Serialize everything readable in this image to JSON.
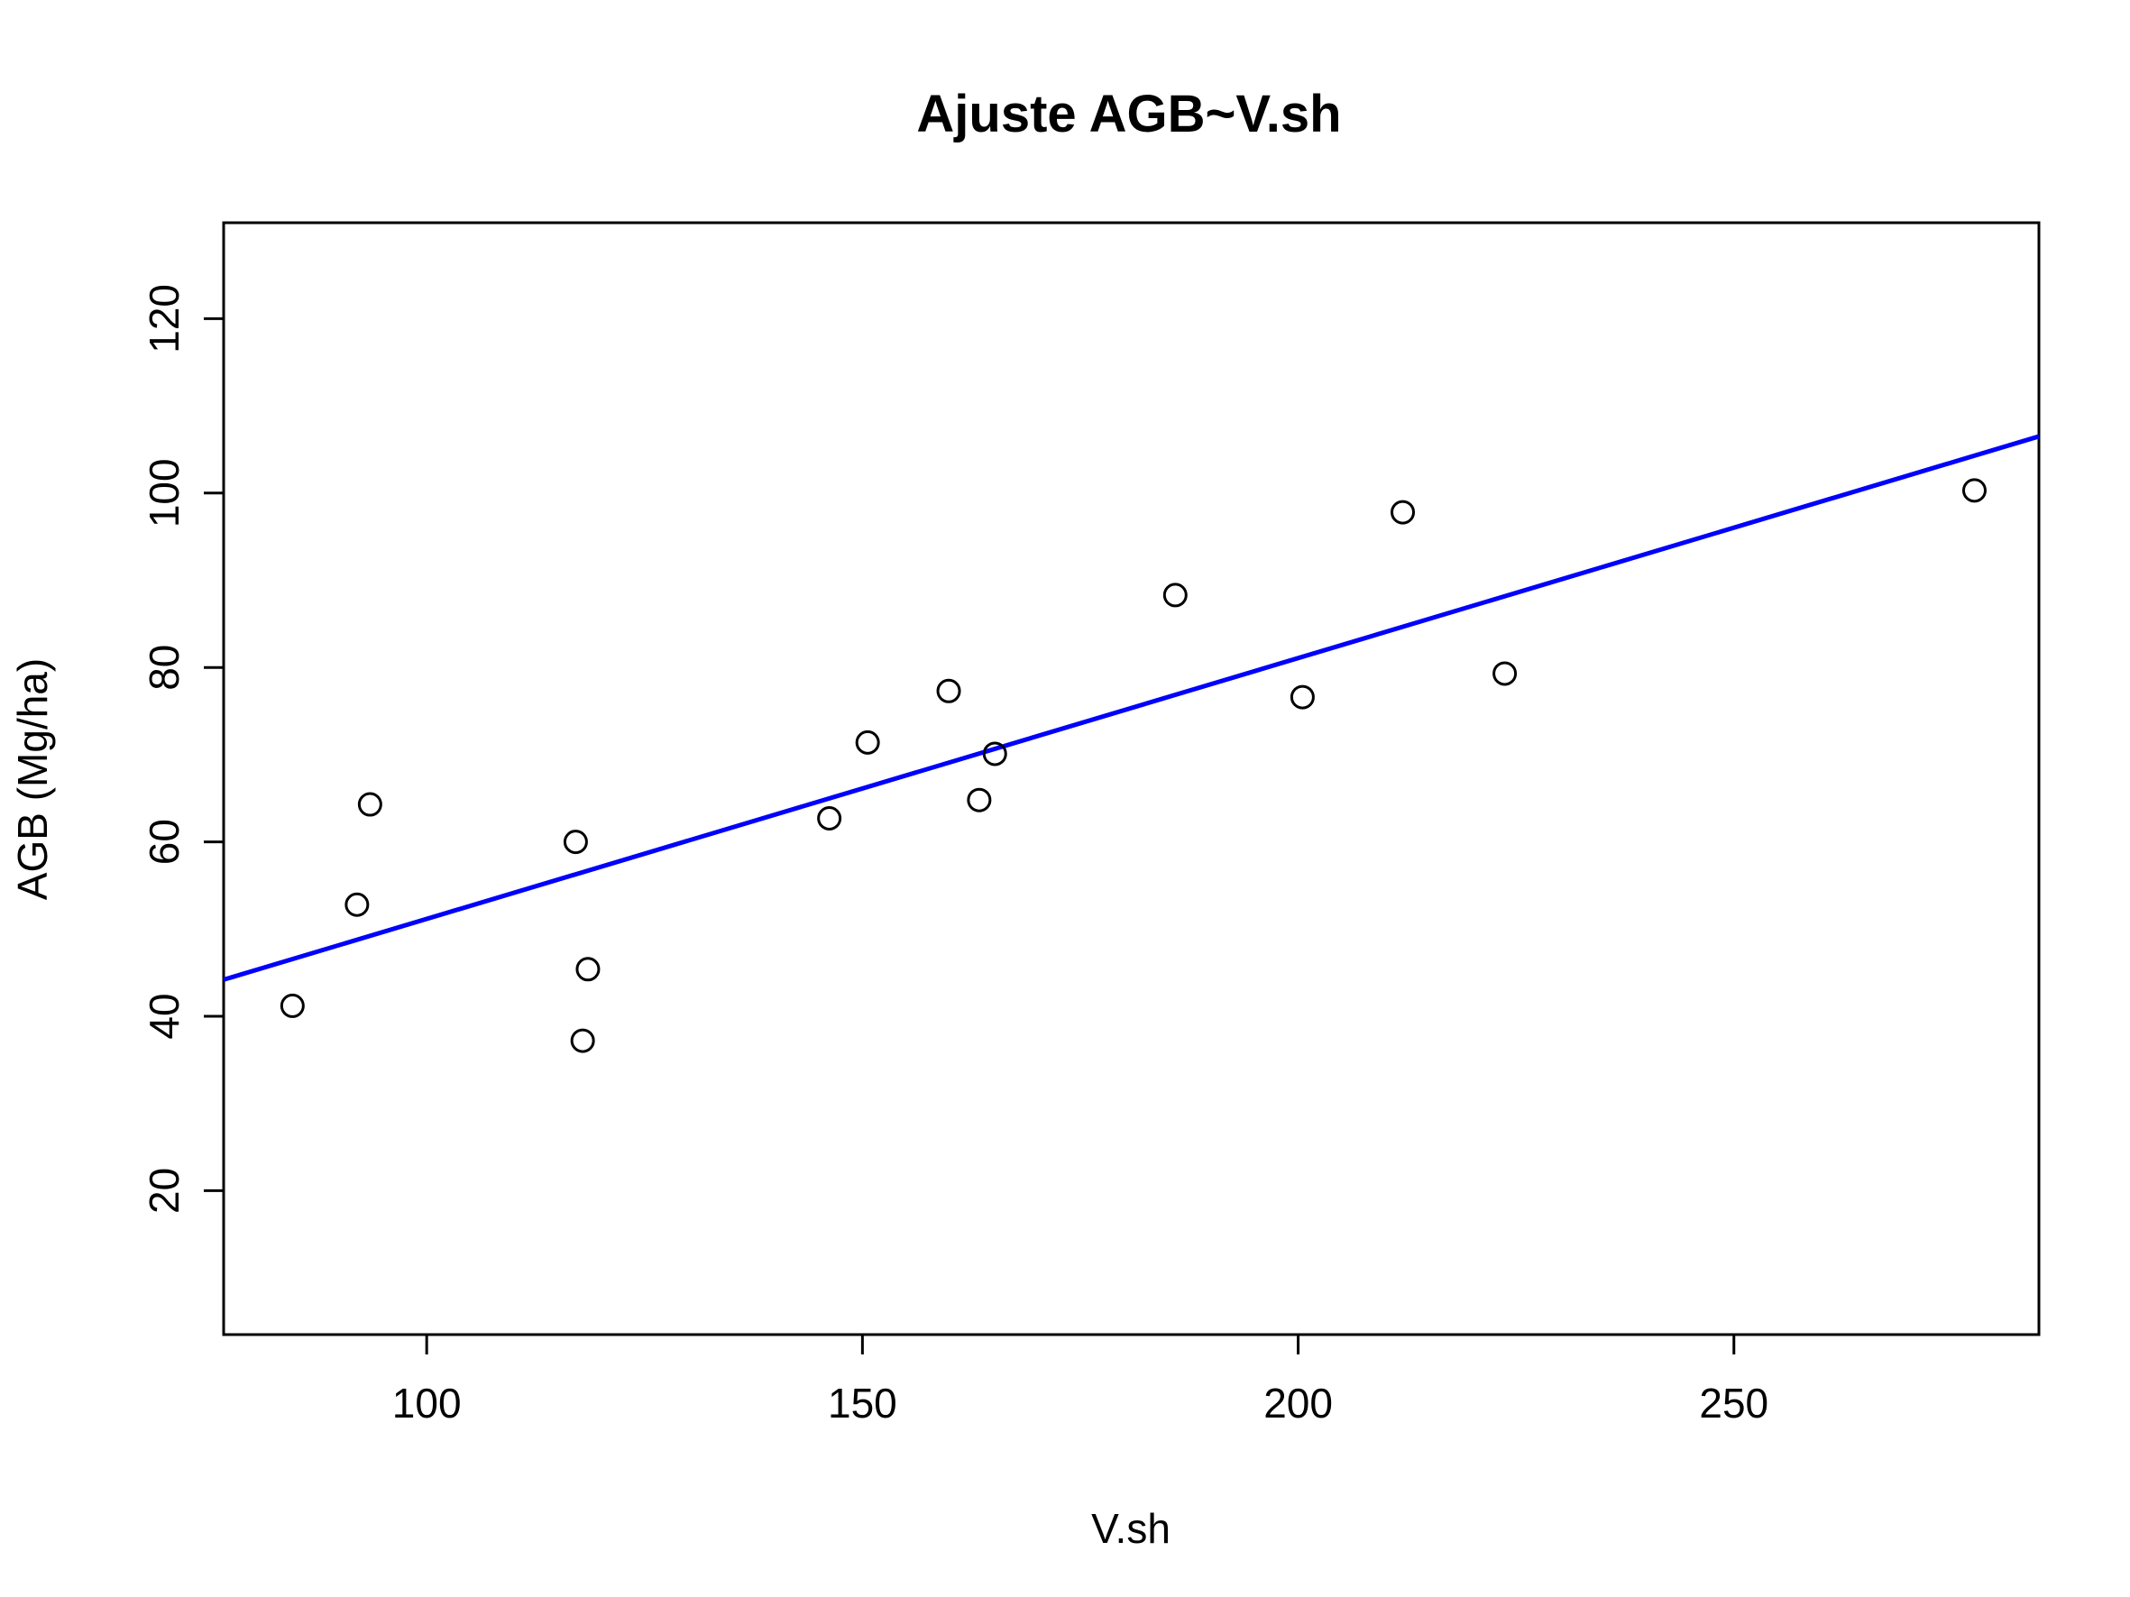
{
  "chart_data": {
    "type": "scatter",
    "title": "Ajuste AGB~V.sh",
    "xlabel": "V.sh",
    "ylabel": "AGB (Mg/ha)",
    "xlim": [
      76.7,
      285
    ],
    "ylim": [
      3.5,
      131
    ],
    "x_ticks": [
      100,
      150,
      200,
      250
    ],
    "y_ticks": [
      20,
      40,
      60,
      80,
      100,
      120
    ],
    "grid": false,
    "series": [
      {
        "marker": "open-circle",
        "color": "#000000",
        "x": [
          84.6,
          92,
          93.5,
          117.1,
          118.5,
          117.9,
          146.2,
          150.6,
          159.9,
          163.4,
          165.2,
          185.9,
          200.5,
          212.0,
          223.7,
          277.6
        ],
        "y": [
          41.2,
          52.8,
          64.3,
          60.0,
          45.4,
          37.2,
          62.7,
          71.4,
          77.3,
          64.8,
          70.1,
          88.3,
          76.6,
          97.8,
          79.3,
          100.3
        ]
      }
    ],
    "fit_line": {
      "color": "#0000ff",
      "x": [
        76.7,
        285
      ],
      "y": [
        44.2,
        106.5
      ]
    }
  }
}
